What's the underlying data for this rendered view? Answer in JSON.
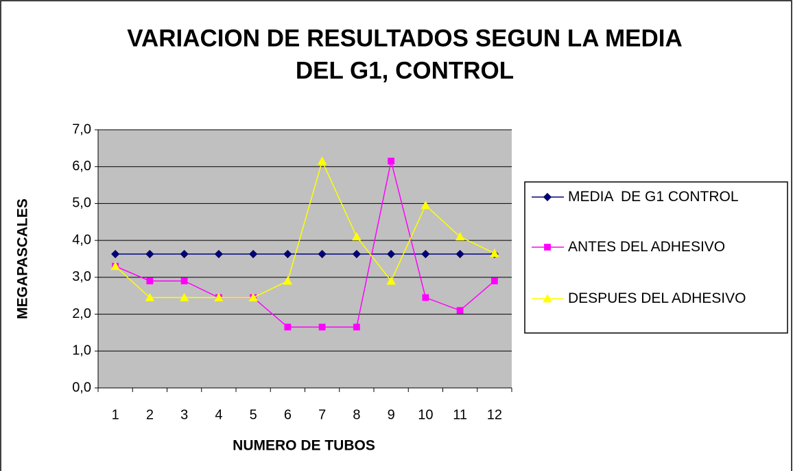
{
  "chart_data": {
    "type": "line",
    "title": [
      "VARIACION DE RESULTADOS SEGUN LA MEDIA",
      "DEL G1, CONTROL"
    ],
    "x_label": "NUMERO DE TUBOS",
    "y_label": "MEGAPASCALES",
    "categories": [
      "1",
      "2",
      "3",
      "4",
      "5",
      "6",
      "7",
      "8",
      "9",
      "10",
      "11",
      "12"
    ],
    "series": [
      {
        "name": "MEDIA  DE G1 CONTROL",
        "color": "#000080",
        "marker": "diamond",
        "values": [
          3.63,
          3.63,
          3.63,
          3.63,
          3.63,
          3.63,
          3.63,
          3.63,
          3.63,
          3.63,
          3.63,
          3.63
        ]
      },
      {
        "name": "ANTES DEL ADHESIVO",
        "color": "#ff00ff",
        "marker": "square",
        "values": [
          3.3,
          2.9,
          2.9,
          2.45,
          2.45,
          1.65,
          1.65,
          1.65,
          6.15,
          2.45,
          2.1,
          2.9
        ]
      },
      {
        "name": "DESPUES DEL ADHESIVO",
        "color": "#ffff00",
        "marker": "triangle",
        "values": [
          3.3,
          2.45,
          2.45,
          2.45,
          2.45,
          2.9,
          6.15,
          4.1,
          2.9,
          4.95,
          4.1,
          3.65
        ]
      }
    ],
    "ylim": [
      0,
      7
    ],
    "yticks": [
      {
        "value": 0,
        "label": "0,0"
      },
      {
        "value": 1,
        "label": "1,0"
      },
      {
        "value": 2,
        "label": "2,0"
      },
      {
        "value": 3,
        "label": "3,0"
      },
      {
        "value": 4,
        "label": "4,0"
      },
      {
        "value": 5,
        "label": "5,0"
      },
      {
        "value": 6,
        "label": "6,0"
      },
      {
        "value": 7,
        "label": "7,0"
      }
    ],
    "grid": true,
    "legend": "right"
  }
}
